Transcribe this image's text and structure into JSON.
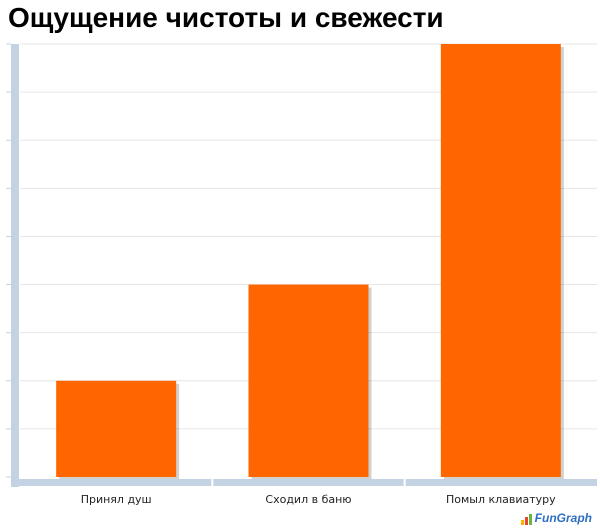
{
  "title": "Ощущение чистоты и свежести",
  "logo_text": "FunGraph",
  "colors": {
    "bar": "#ff6600",
    "axis": "#c3d3e3",
    "grid": "#e6e6e6",
    "logo": "#2f6fc1"
  },
  "chart_data": {
    "type": "bar",
    "title": "Ощущение чистоты и свежести",
    "categories": [
      "Принял душ",
      "Сходил в баню",
      "Помыл клавиатуру"
    ],
    "values": [
      2,
      4,
      9
    ],
    "ylim": [
      0,
      9
    ],
    "xlabel": "",
    "ylabel": "",
    "grid": true,
    "legend": "none"
  }
}
